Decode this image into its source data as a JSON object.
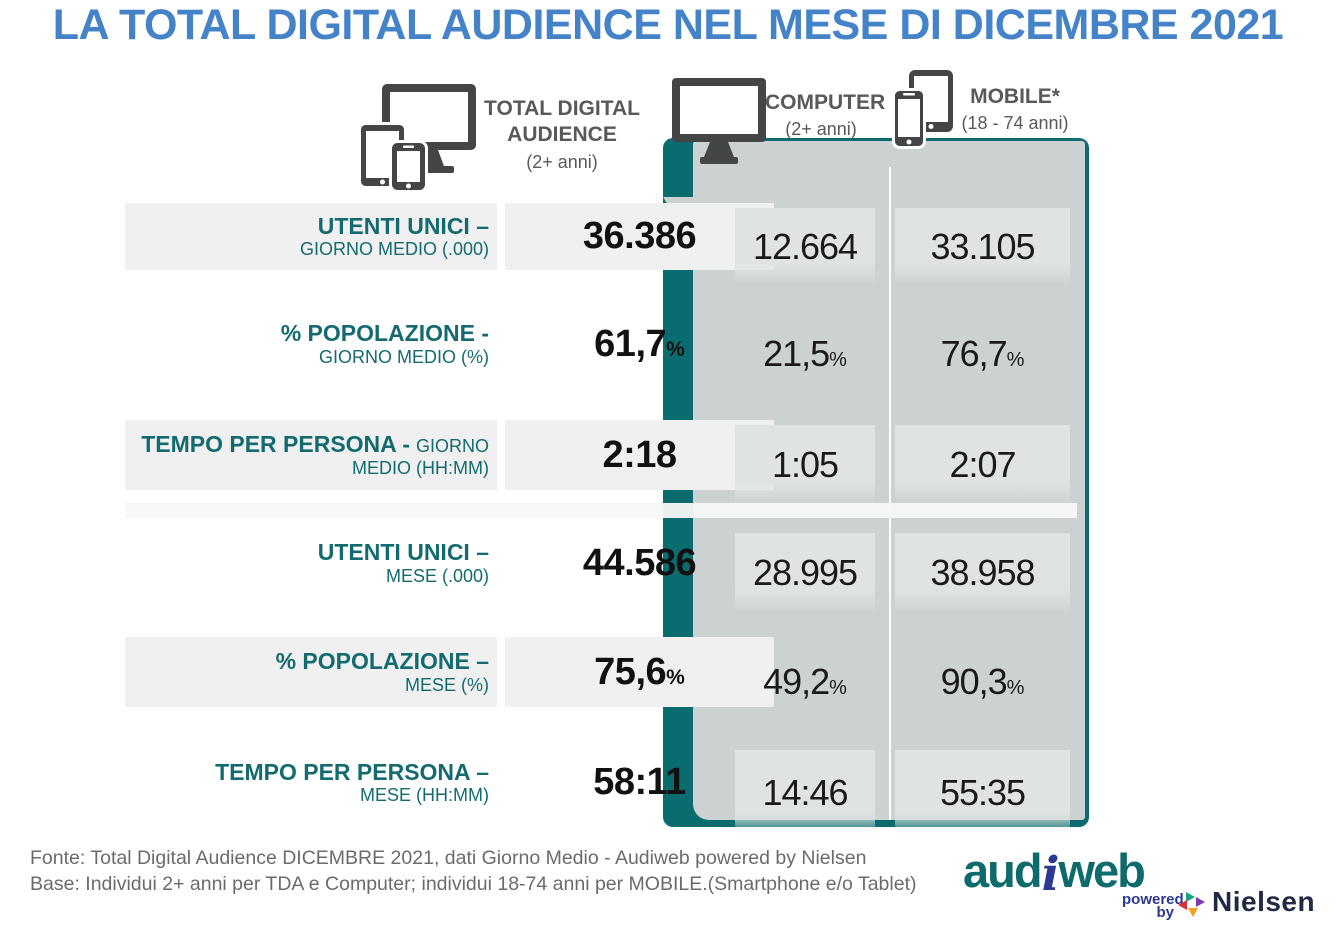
{
  "title": "LA TOTAL DIGITAL AUDIENCE NEL MESE DI DICEMBRE 2021",
  "header": {
    "tda": {
      "line1": "TOTAL DIGITAL",
      "line2": "AUDIENCE",
      "sub": "(2+ anni)"
    },
    "computer": {
      "label": "COMPUTER",
      "sub": "(2+ anni)"
    },
    "mobile": {
      "label": "MOBILE*",
      "sub": "(18 - 74 anni)"
    }
  },
  "rows": [
    {
      "label_main": "UTENTI UNICI –",
      "label_sub": "GIORNO MEDIO (.000)",
      "tda": "36.386",
      "computer": "12.664",
      "mobile": "33.105",
      "unit": ""
    },
    {
      "label_main": "% POPOLAZIONE -",
      "label_sub": "GIORNO MEDIO (%)",
      "tda": "61,7",
      "computer": "21,5",
      "mobile": "76,7",
      "unit": "%"
    },
    {
      "label_main": "TEMPO PER PERSONA -",
      "label_sub": "GIORNO MEDIO (HH:MM)",
      "tda": "2:18",
      "computer": "1:05",
      "mobile": "2:07",
      "unit": ""
    },
    {
      "label_main": "UTENTI UNICI –",
      "label_sub": "MESE (.000)",
      "tda": "44.586",
      "computer": "28.995",
      "mobile": "38.958",
      "unit": ""
    },
    {
      "label_main": "% POPOLAZIONE –",
      "label_sub": "MESE (%)",
      "tda": "75,6",
      "computer": "49,2",
      "mobile": "90,3",
      "unit": "%"
    },
    {
      "label_main": "TEMPO PER PERSONA –",
      "label_sub": "MESE (HH:MM)",
      "tda": "58:11",
      "computer": "14:46",
      "mobile": "55:35",
      "unit": ""
    }
  ],
  "footer": {
    "line1": "Fonte: Total Digital Audience DICEMBRE 2021, dati Giorno Medio - Audiweb powered by Nielsen",
    "line2": "Base:  Individui 2+ anni per TDA e Computer; individui 18-74 anni per MOBILE.(Smartphone e/o Tablet)"
  },
  "logo": {
    "audiweb_pre": "aud",
    "audiweb_i": "i",
    "audiweb_post": "web",
    "powered": "powered",
    "by": "by",
    "nielsen": "Nielsen"
  },
  "colors": {
    "title_blue": "#4583C9",
    "teal": "#0A6C6F",
    "panel_gray": "#CBD2D1",
    "cell_gray": "#DFE4E3",
    "band_gray": "#F0F0F0",
    "label_teal": "#136B70",
    "header_gray": "#595959",
    "footer_gray": "#6B6B6B",
    "audiweb_teal": "#0E6B6B",
    "audiweb_navy": "#2B3990",
    "nielsen_navy": "#202A44",
    "nielsen_mark": [
      "#17A284",
      "#7C3BB0",
      "#D6313B",
      "#F6A01A"
    ]
  },
  "chart_data": {
    "type": "table",
    "title": "LA TOTAL DIGITAL AUDIENCE NEL MESE DI DICEMBRE 2021",
    "columns": [
      "TOTAL DIGITAL AUDIENCE (2+ anni)",
      "COMPUTER (2+ anni)",
      "MOBILE* (18 - 74 anni)"
    ],
    "rows": [
      {
        "metric": "UTENTI UNICI – GIORNO MEDIO (.000)",
        "values": [
          "36.386",
          "12.664",
          "33.105"
        ]
      },
      {
        "metric": "% POPOLAZIONE - GIORNO MEDIO (%)",
        "values": [
          "61,7%",
          "21,5%",
          "76,7%"
        ]
      },
      {
        "metric": "TEMPO PER PERSONA - GIORNO MEDIO (HH:MM)",
        "values": [
          "2:18",
          "1:05",
          "2:07"
        ]
      },
      {
        "metric": "UTENTI UNICI – MESE (.000)",
        "values": [
          "44.586",
          "28.995",
          "38.958"
        ]
      },
      {
        "metric": "% POPOLAZIONE – MESE (%)",
        "values": [
          "75,6%",
          "49,2%",
          "90,3%"
        ]
      },
      {
        "metric": "TEMPO PER PERSONA – MESE (HH:MM)",
        "values": [
          "58:11",
          "14:46",
          "55:35"
        ]
      }
    ],
    "source": "Fonte: Total Digital Audience DICEMBRE 2021, dati Giorno Medio - Audiweb powered by Nielsen"
  }
}
